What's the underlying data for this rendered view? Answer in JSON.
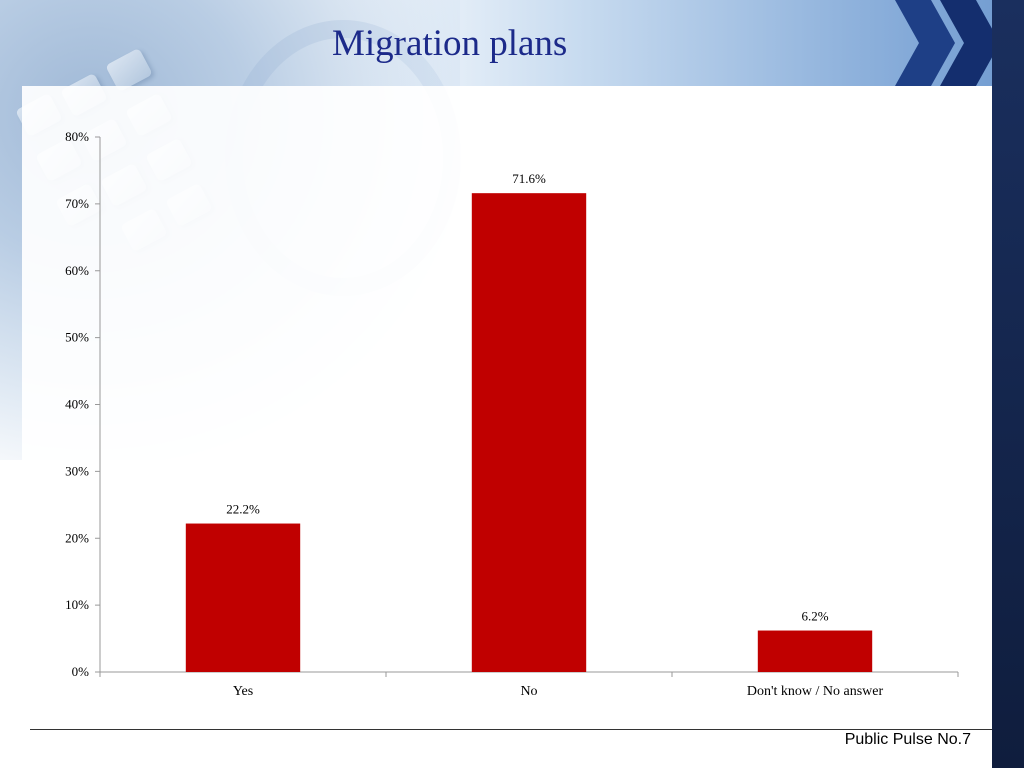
{
  "slide": {
    "title": "Migration plans",
    "footer": "Public Pulse No.7"
  },
  "colors": {
    "bar": "#c00000",
    "title": "#1c2a8a",
    "axis": "#999999"
  },
  "chart_data": {
    "type": "bar",
    "title": "",
    "xlabel": "",
    "ylabel": "",
    "categories": [
      "Yes",
      "No",
      "Don't know / No answer"
    ],
    "values": [
      22.2,
      71.6,
      6.2
    ],
    "value_labels": [
      "22.2%",
      "71.6%",
      "6.2%"
    ],
    "ylim": [
      0,
      80
    ],
    "yticks": [
      0,
      10,
      20,
      30,
      40,
      50,
      60,
      70,
      80
    ],
    "ytick_labels": [
      "0%",
      "10%",
      "20%",
      "30%",
      "40%",
      "50%",
      "60%",
      "70%",
      "80%"
    ],
    "grid": false,
    "legend": "none"
  }
}
